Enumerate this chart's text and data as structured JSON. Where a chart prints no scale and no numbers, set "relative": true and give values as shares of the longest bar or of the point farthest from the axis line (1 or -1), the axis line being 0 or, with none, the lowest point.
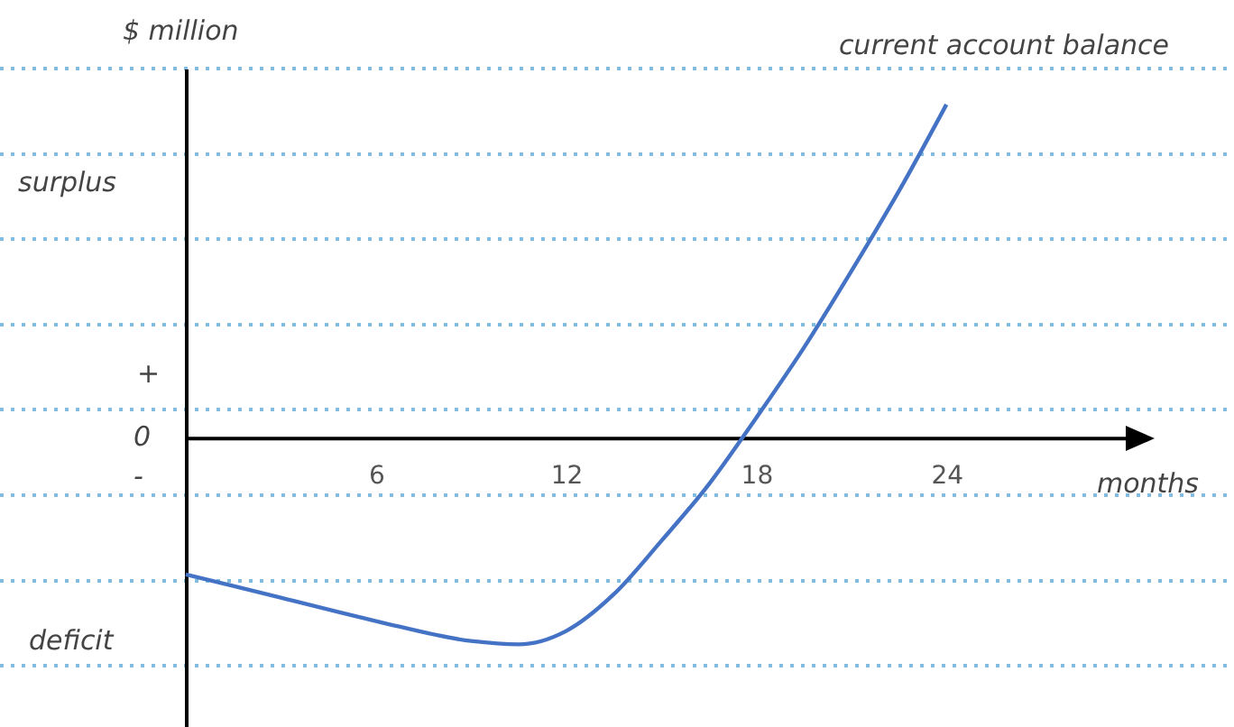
{
  "chart_data": {
    "type": "line",
    "relative": true,
    "xlabel": "months",
    "ylabel": "$ million",
    "annotations": [
      "surplus",
      "deficit",
      "+",
      "0",
      "-"
    ],
    "xlim": [
      0,
      30
    ],
    "xticks": [
      6,
      12,
      18,
      24
    ],
    "series": [
      {
        "name": "current account balance",
        "color": "#4472c4",
        "x": [
          0,
          3,
          6,
          9,
          10.5,
          12,
          13.5,
          15,
          16.5,
          18,
          19.5,
          21,
          22.5,
          24
        ],
        "values": [
          -0.41,
          -0.48,
          -0.55,
          -0.61,
          -0.62,
          -0.58,
          -0.47,
          -0.31,
          -0.14,
          0.06,
          0.27,
          0.5,
          0.74,
          1
        ]
      }
    ]
  }
}
